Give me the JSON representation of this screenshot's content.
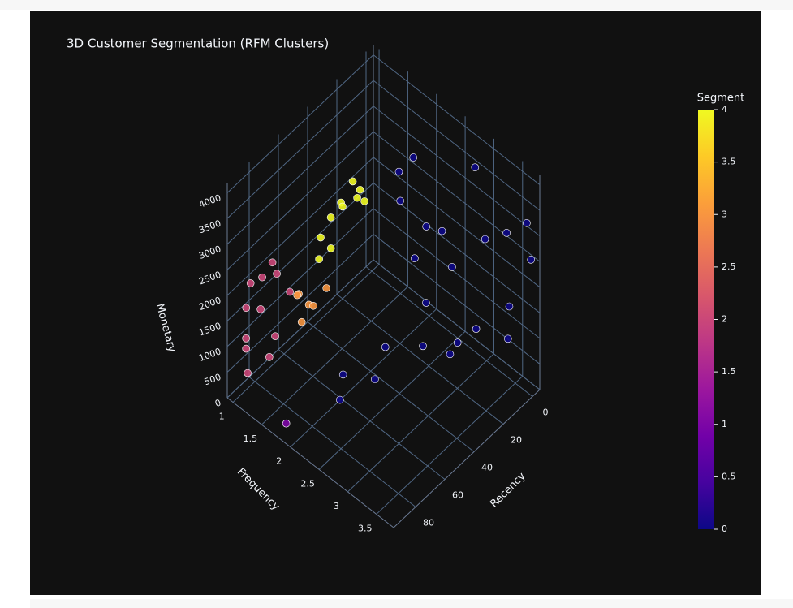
{
  "chart_data": {
    "type": "scatter3d",
    "title": "3D Customer Segmentation (RFM Clusters)",
    "xaxis_title": "Recency",
    "yaxis_title": "Frequency",
    "zaxis_title": "Monetary",
    "xlim": [
      -5,
      95
    ],
    "ylim": [
      0.9,
      3.8
    ],
    "zlim": [
      0,
      4200
    ],
    "xticks": [
      0,
      20,
      40,
      60,
      80
    ],
    "yticks": [
      1,
      1.5,
      2,
      2.5,
      3,
      3.5
    ],
    "zticks": [
      0,
      500,
      1000,
      1500,
      2000,
      2500,
      3000,
      3500,
      4000
    ],
    "colorbar_title": "Segment",
    "clim": [
      0,
      4
    ],
    "cticks": [
      0,
      0.5,
      1,
      1.5,
      2,
      2.5,
      3,
      3.5,
      4
    ],
    "colorscale": [
      "#0d0887",
      "#46039f",
      "#7201a8",
      "#9c179e",
      "#bd3786",
      "#d8576b",
      "#ed7953",
      "#fb9f3a",
      "#fdca26",
      "#f0f921"
    ],
    "grid": true,
    "x": [
      85,
      88,
      80,
      75,
      70,
      90,
      65,
      78,
      83,
      60,
      72,
      86,
      35,
      30,
      25,
      20,
      15,
      10,
      40,
      28,
      12,
      5,
      50,
      45,
      55,
      40,
      35,
      48,
      5,
      3,
      8,
      2,
      6,
      10,
      4,
      1,
      2,
      0,
      1,
      5,
      12,
      20,
      30,
      45,
      55,
      65,
      0,
      3,
      15,
      25,
      8,
      90
    ],
    "y": [
      1.0,
      1.05,
      1.1,
      1.0,
      1.05,
      1.1,
      1.0,
      1.2,
      1.0,
      1.1,
      1.15,
      1.0,
      1.0,
      1.05,
      1.1,
      1.0,
      1.05,
      1.0,
      1.1,
      1.0,
      1.1,
      1.0,
      1.0,
      1.05,
      1.1,
      1.0,
      1.1,
      1.0,
      1.6,
      1.8,
      1.7,
      2.0,
      1.9,
      2.2,
      2.5,
      3.0,
      3.4,
      3.7,
      3.8,
      3.5,
      2.8,
      2.4,
      2.0,
      2.2,
      1.9,
      2.1,
      2.8,
      2.3,
      3.2,
      3.0,
      3.6,
      1.8
    ],
    "z": [
      300,
      900,
      1500,
      1900,
      2100,
      1200,
      1700,
      600,
      2000,
      1300,
      800,
      1600,
      1600,
      1900,
      2100,
      1800,
      2200,
      1700,
      1400,
      1200,
      2000,
      1500,
      900,
      600,
      1100,
      400,
      700,
      300,
      2600,
      3000,
      2200,
      1800,
      1200,
      700,
      1500,
      2400,
      2900,
      3300,
      2700,
      1000,
      500,
      300,
      200,
      150,
      250,
      200,
      3600,
      2000,
      1200,
      800,
      1800,
      150
    ],
    "marker_color": [
      2,
      2,
      2,
      2,
      2,
      2,
      2,
      2,
      2,
      2,
      2,
      2,
      4,
      4,
      4,
      4,
      4,
      4,
      4,
      4,
      4,
      4,
      3,
      3,
      3,
      3,
      3,
      3,
      0,
      0,
      0,
      0,
      0,
      0,
      0,
      0,
      0,
      0,
      0,
      0,
      0,
      0,
      0,
      0,
      0,
      0,
      0,
      0,
      0,
      0,
      0,
      1
    ]
  }
}
